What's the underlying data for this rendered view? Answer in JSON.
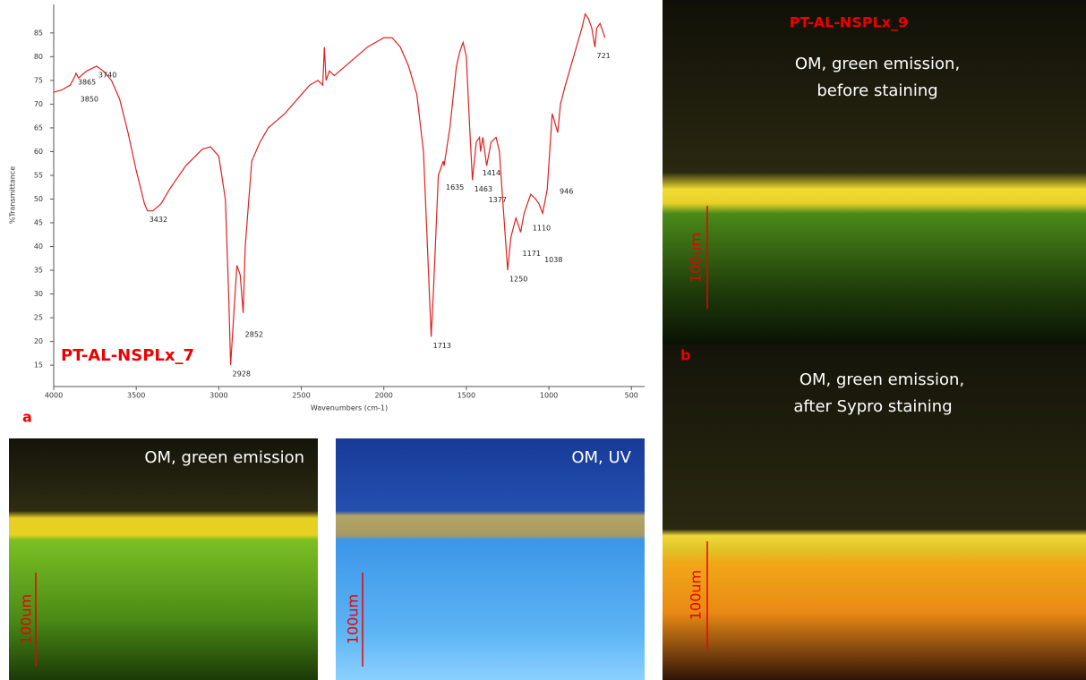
{
  "chart_data": {
    "type": "line",
    "title": "PT-AL-NSPLx_7",
    "x_label": "Wavenumbers (cm-1)",
    "y_label": "%Transmittance",
    "color": "#e02020",
    "x": [
      4000,
      3950,
      3900,
      3870,
      3865,
      3850,
      3800,
      3740,
      3700,
      3650,
      3600,
      3550,
      3500,
      3450,
      3432,
      3400,
      3350,
      3300,
      3200,
      3100,
      3050,
      3000,
      2960,
      2940,
      2928,
      2910,
      2890,
      2870,
      2852,
      2840,
      2800,
      2750,
      2700,
      2600,
      2500,
      2450,
      2400,
      2370,
      2360,
      2350,
      2330,
      2300,
      2250,
      2200,
      2100,
      2000,
      1950,
      1900,
      1850,
      1800,
      1760,
      1730,
      1713,
      1700,
      1670,
      1640,
      1635,
      1600,
      1560,
      1540,
      1520,
      1500,
      1480,
      1463,
      1440,
      1420,
      1414,
      1400,
      1377,
      1350,
      1320,
      1300,
      1270,
      1250,
      1230,
      1200,
      1180,
      1171,
      1150,
      1120,
      1110,
      1080,
      1060,
      1038,
      1010,
      980,
      946,
      930,
      900,
      850,
      800,
      780,
      760,
      740,
      721,
      710,
      690,
      660
    ],
    "values": [
      72.5,
      73,
      74,
      76,
      76.5,
      75.5,
      77,
      78,
      77,
      75,
      71,
      64,
      56,
      49,
      47.5,
      47.5,
      49,
      52,
      57,
      60.5,
      61,
      59,
      50,
      30,
      15,
      25,
      36,
      34,
      26,
      40,
      58,
      62,
      65,
      68,
      72,
      74,
      75,
      74,
      82,
      75,
      77,
      76,
      77.5,
      79,
      82,
      84,
      84,
      82,
      78,
      72,
      60,
      35,
      21,
      30,
      55,
      58,
      57,
      65,
      78,
      81,
      83,
      80,
      65,
      54,
      62,
      63,
      60,
      63,
      57,
      62,
      63,
      60,
      45,
      35,
      42,
      46,
      44,
      43,
      47,
      50,
      51,
      50,
      49,
      47,
      52,
      68,
      64,
      70,
      74,
      80,
      86,
      89,
      88,
      86,
      82,
      86,
      87,
      84
    ],
    "xlim": [
      4000,
      420
    ],
    "ylim": [
      10.5,
      91
    ],
    "xticks": [
      4000,
      3500,
      3000,
      2500,
      2000,
      1500,
      1000,
      500
    ],
    "yticks": [
      15,
      20,
      25,
      30,
      35,
      40,
      45,
      50,
      55,
      60,
      65,
      70,
      75,
      80,
      85
    ],
    "peaks": {
      "x": [
        3865,
        3850,
        3740,
        3432,
        2928,
        2852,
        1713,
        1635,
        1463,
        1414,
        1377,
        1250,
        1171,
        1110,
        1038,
        946,
        721
      ],
      "y": [
        76.5,
        75.5,
        78,
        47.5,
        15,
        26,
        21,
        57,
        54,
        60,
        57,
        35,
        43,
        51,
        47,
        64,
        82
      ]
    }
  },
  "panel_labels": [
    "a",
    "b"
  ],
  "scale_label": "100um",
  "images": [
    {
      "caption": [
        "OM, green emission"
      ]
    },
    {
      "caption": [
        "OM, UV"
      ]
    },
    {
      "title": "PT-AL-NSPLx_9",
      "caption": [
        "OM, green emission,",
        "before staining"
      ]
    },
    {
      "caption": [
        "OM, green emission,",
        "after Sypro staining"
      ]
    }
  ]
}
